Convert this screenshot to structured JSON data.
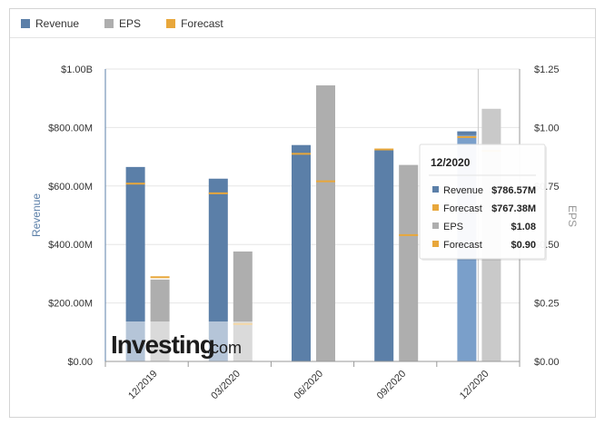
{
  "legend": [
    {
      "label": "Revenue",
      "color": "#5b7fa8"
    },
    {
      "label": "EPS",
      "color": "#aeaeae"
    },
    {
      "label": "Forecast",
      "color": "#e8a73b"
    }
  ],
  "chart_data": {
    "type": "bar",
    "categories": [
      "12/2019",
      "03/2020",
      "06/2020",
      "09/2020",
      "12/2020"
    ],
    "revenue": [
      665,
      625,
      740,
      722,
      786.57
    ],
    "revenue_forecast": [
      608,
      575,
      710,
      725,
      767.38
    ],
    "eps": [
      0.35,
      0.47,
      1.18,
      0.84,
      1.08
    ],
    "eps_forecast": [
      0.36,
      0.16,
      0.77,
      0.54,
      0.9
    ],
    "ylabel_left": "Revenue",
    "ylabel_right": "EPS",
    "left_ticks": [
      "$0.00",
      "$200.00M",
      "$400.00M",
      "$600.00M",
      "$800.00M",
      "$1.00B"
    ],
    "left_max": 1000,
    "right_ticks": [
      "$0.00",
      "$0.25",
      "$0.50",
      "$0.75",
      "$1.00",
      "$1.25"
    ],
    "right_max": 1.25,
    "highlight_index": 4
  },
  "tooltip": {
    "title": "12/2020",
    "rows": [
      {
        "label": "Revenue",
        "value": "$786.57M",
        "color": "#5b7fa8"
      },
      {
        "label": "Forecast",
        "value": "$767.38M",
        "color": "#e8a73b"
      },
      {
        "label": "EPS",
        "value": "$1.08",
        "color": "#aeaeae"
      },
      {
        "label": "Forecast",
        "value": "$0.90",
        "color": "#e8a73b"
      }
    ]
  },
  "watermark": {
    "brand": "Investing",
    "suffix": ".com"
  }
}
